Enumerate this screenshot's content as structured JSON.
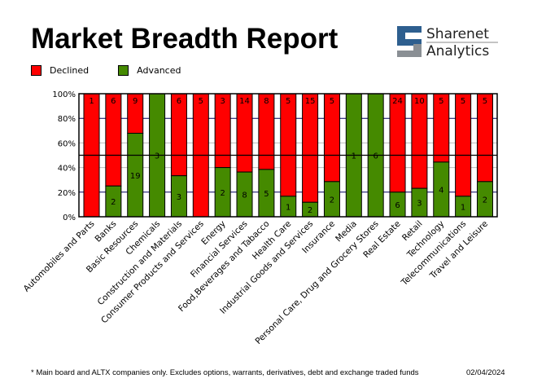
{
  "header": {
    "title": "Market Breadth Report",
    "logo_text_1": "Sharenet",
    "logo_text_2": "Analytics"
  },
  "footer": {
    "note": "* Main board and ALTX companies only. Excludes options, warrants, derivatives, debt and exchange traded funds",
    "date": "02/04/2024"
  },
  "chart_data": {
    "type": "bar",
    "stacked": "percent",
    "categories": [
      "Automobiles and Parts",
      "Banks",
      "Basic Resources",
      "Chemicals",
      "Construction and Materials",
      "Consumer Products and Services",
      "Energy",
      "Financial Services",
      "Food,Beverages and Tabacco",
      "Health Care",
      "Industrial Goods and Services",
      "Insurance",
      "Media",
      "Personal Care, Drug and Grocery Stores",
      "Real Estate",
      "Retail",
      "Technology",
      "Telecommunications",
      "Travel and Leisure"
    ],
    "series": [
      {
        "name": "Declined",
        "color": "#ff0000",
        "values": [
          1,
          6,
          9,
          0,
          6,
          5,
          3,
          14,
          8,
          5,
          15,
          5,
          0,
          0,
          24,
          10,
          5,
          5,
          5
        ]
      },
      {
        "name": "Advanced",
        "color": "#458a00",
        "values": [
          0,
          2,
          19,
          3,
          3,
          0,
          2,
          8,
          5,
          1,
          2,
          2,
          1,
          6,
          6,
          3,
          4,
          1,
          2
        ]
      }
    ],
    "yticks": [
      "0%",
      "20%",
      "40%",
      "60%",
      "80%",
      "100%"
    ],
    "ylim": [
      0,
      100
    ],
    "reference_line": 50,
    "legend": "top-left"
  }
}
